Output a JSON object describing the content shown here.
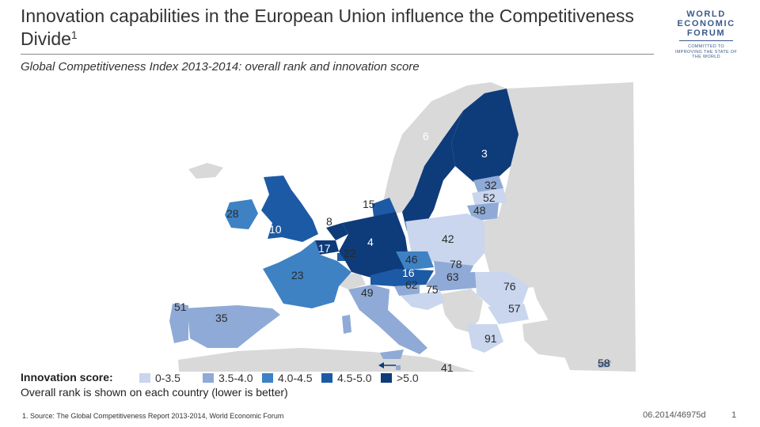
{
  "title": {
    "text": "Innovation capabilities in the European Union influence the Competitiveness Divide",
    "superscript": "1"
  },
  "subtitle": "Global Competitiveness Index 2013-2014: overall rank and innovation score",
  "logo": {
    "line1": "WORLD",
    "line2": "ECONOMIC",
    "line3": "FORUM",
    "tagline": "COMMITTED TO IMPROVING THE STATE OF THE WORLD"
  },
  "colors": {
    "c1": "#c9d6ee",
    "c2": "#8faad6",
    "c3": "#3e82c4",
    "c4": "#1c5aa5",
    "c5": "#0e3b7a",
    "non_eu": "#d9d9d9",
    "sea": "#ffffff"
  },
  "legend": {
    "title": "Innovation score:",
    "items": [
      {
        "label": "0-3.5",
        "color": "#c9d6ee"
      },
      {
        "label": "3.5-4.0",
        "color": "#8faad6"
      },
      {
        "label": "4.0-4.5",
        "color": "#3e82c4"
      },
      {
        "label": "4.5-5.0",
        "color": "#1c5aa5"
      },
      {
        "label": ">5.0",
        "color": "#0e3b7a"
      }
    ],
    "note": "Overall rank is shown on each country (lower is better)"
  },
  "countries": [
    {
      "name": "Finland",
      "rank": "3",
      "band": 5
    },
    {
      "name": "Sweden",
      "rank": "6",
      "band": 5
    },
    {
      "name": "Estonia",
      "rank": "32",
      "band": 2
    },
    {
      "name": "Latvia",
      "rank": "52",
      "band": 1
    },
    {
      "name": "Lithuania",
      "rank": "48",
      "band": 2
    },
    {
      "name": "Denmark",
      "rank": "15",
      "band": 4
    },
    {
      "name": "United Kingdom",
      "rank": "10",
      "band": 4
    },
    {
      "name": "Ireland",
      "rank": "28",
      "band": 3
    },
    {
      "name": "Netherlands",
      "rank": "8",
      "band": 5
    },
    {
      "name": "Belgium",
      "rank": "17",
      "band": 5
    },
    {
      "name": "Luxembourg",
      "rank": "22",
      "band": 4
    },
    {
      "name": "Germany",
      "rank": "4",
      "band": 5
    },
    {
      "name": "Poland",
      "rank": "42",
      "band": 1
    },
    {
      "name": "Czech Republic",
      "rank": "46",
      "band": 3
    },
    {
      "name": "Austria",
      "rank": "16",
      "band": 4
    },
    {
      "name": "Slovakia",
      "rank": "78",
      "band": 2
    },
    {
      "name": "Hungary",
      "rank": "63",
      "band": 2
    },
    {
      "name": "Slovenia",
      "rank": "62",
      "band": 2
    },
    {
      "name": "Croatia",
      "rank": "75",
      "band": 1
    },
    {
      "name": "France",
      "rank": "23",
      "band": 3
    },
    {
      "name": "Italy",
      "rank": "49",
      "band": 2
    },
    {
      "name": "Spain",
      "rank": "35",
      "band": 2
    },
    {
      "name": "Portugal",
      "rank": "51",
      "band": 2
    },
    {
      "name": "Romania",
      "rank": "76",
      "band": 1
    },
    {
      "name": "Bulgaria",
      "rank": "57",
      "band": 1
    },
    {
      "name": "Greece",
      "rank": "91",
      "band": 1
    },
    {
      "name": "Malta",
      "rank": "41",
      "band": 2
    },
    {
      "name": "Cyprus",
      "rank": "58",
      "band": 2
    }
  ],
  "footnote": "1. Source: The Global Competitiveness Report 2013-2014, World Economic Forum",
  "doc_id": "06.2014/46975d",
  "page_number": "1"
}
